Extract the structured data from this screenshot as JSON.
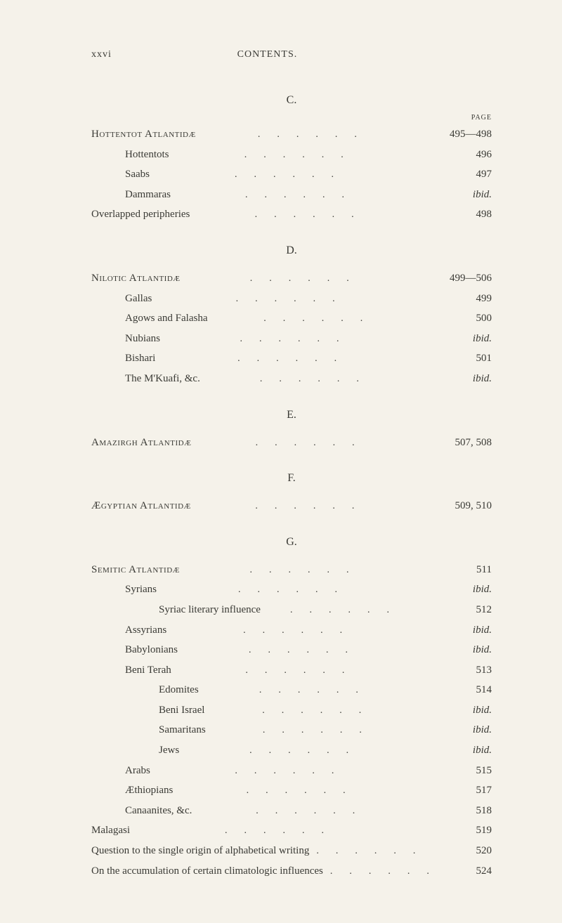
{
  "header": {
    "roman": "xxvi",
    "title": "CONTENTS."
  },
  "pageLabel": "PAGE",
  "sections": [
    {
      "letter": "C.",
      "entries": [
        {
          "label": "Hottentot Atlantidæ",
          "page": "495—498",
          "indent": 0,
          "sc": true
        },
        {
          "label": "Hottentots",
          "page": "496",
          "indent": 1
        },
        {
          "label": "Saabs",
          "page": "497",
          "indent": 1
        },
        {
          "label": "Dammaras",
          "page": "ibid.",
          "indent": 1,
          "italicPage": true
        },
        {
          "label": "Overlapped peripheries",
          "page": "498",
          "indent": 0
        }
      ]
    },
    {
      "letter": "D.",
      "entries": [
        {
          "label": "Nilotic Atlantidæ",
          "page": "499—506",
          "indent": 0,
          "sc": true
        },
        {
          "label": "Gallas",
          "page": "499",
          "indent": 1
        },
        {
          "label": "Agows and Falasha",
          "page": "500",
          "indent": 1
        },
        {
          "label": "Nubians",
          "page": "ibid.",
          "indent": 1,
          "italicPage": true
        },
        {
          "label": "Bishari",
          "page": "501",
          "indent": 1
        },
        {
          "label": "The M'Kuafi, &c.",
          "page": "ibid.",
          "indent": 1,
          "italicPage": true
        }
      ]
    },
    {
      "letter": "E.",
      "entries": [
        {
          "label": "Amazirgh Atlantidæ",
          "page": "507, 508",
          "indent": 0,
          "sc": true
        }
      ]
    },
    {
      "letter": "F.",
      "entries": [
        {
          "label": "Ægyptian Atlantidæ",
          "page": "509, 510",
          "indent": 0,
          "sc": true
        }
      ]
    },
    {
      "letter": "G.",
      "entries": [
        {
          "label": "Semitic Atlantidæ",
          "page": "511",
          "indent": 0,
          "sc": true
        },
        {
          "label": "Syrians",
          "page": "ibid.",
          "indent": 1,
          "italicPage": true
        },
        {
          "label": "Syriac literary influence",
          "page": "512",
          "indent": 2
        },
        {
          "label": "Assyrians",
          "page": "ibid.",
          "indent": 1,
          "italicPage": true
        },
        {
          "label": "Babylonians",
          "page": "ibid.",
          "indent": 1,
          "italicPage": true
        },
        {
          "label": "Beni Terah",
          "page": "513",
          "indent": 1
        },
        {
          "label": "Edomites",
          "page": "514",
          "indent": 2
        },
        {
          "label": "Beni Israel",
          "page": "ibid.",
          "indent": 2,
          "italicPage": true
        },
        {
          "label": "Samaritans",
          "page": "ibid.",
          "indent": 2,
          "italicPage": true
        },
        {
          "label": "Jews",
          "page": "ibid.",
          "indent": 2,
          "italicPage": true
        },
        {
          "label": "Arabs",
          "page": "515",
          "indent": 1
        },
        {
          "label": "Æthiopians",
          "page": "517",
          "indent": 1
        },
        {
          "label": "Canaanites, &c.",
          "page": "518",
          "indent": 1
        },
        {
          "label": "Malagasi",
          "page": "519",
          "indent": 0
        },
        {
          "label": "Question to the single origin of alphabetical writing",
          "page": "520",
          "indent": 0
        },
        {
          "label": "On the accumulation of certain climatologic influences",
          "page": "524",
          "indent": 0
        }
      ]
    }
  ]
}
